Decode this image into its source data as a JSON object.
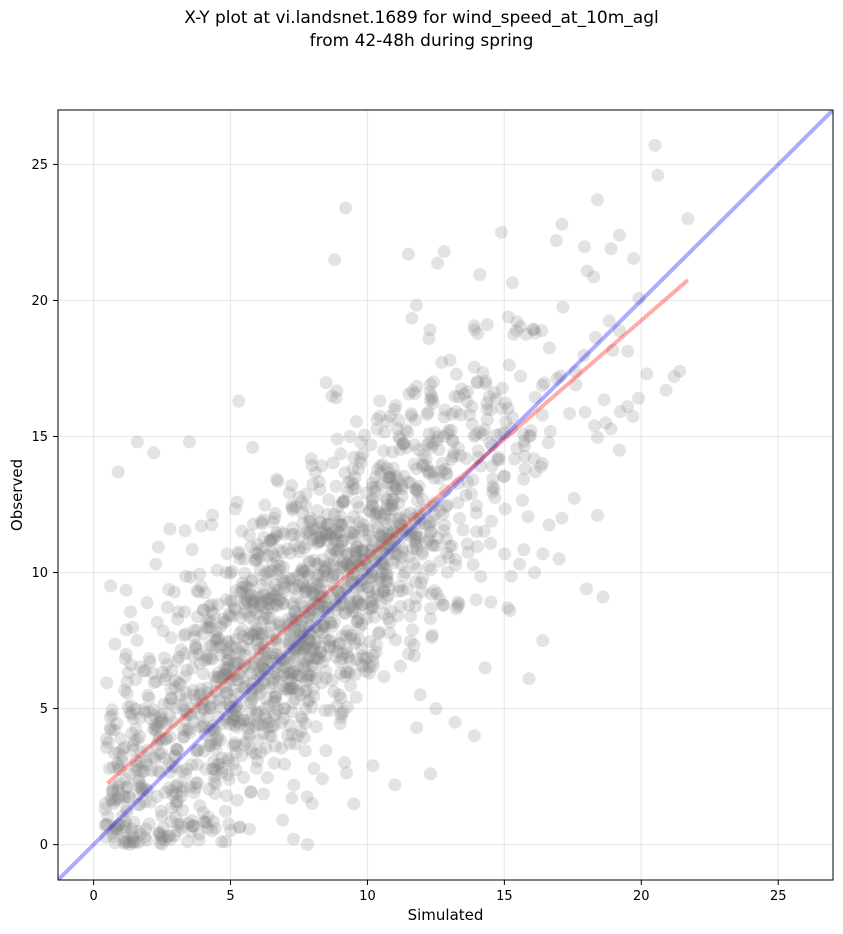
{
  "chart_data": {
    "type": "scatter",
    "title_line1": "X-Y plot at vi.landsnet.1689 for wind_speed_at_10m_agl",
    "title_line2": "from 42-48h during spring",
    "xlabel": "Simulated",
    "ylabel": "Observed",
    "xlim": [
      -1.3,
      27
    ],
    "ylim": [
      -1.3,
      27
    ],
    "xticks": [
      0,
      5,
      10,
      15,
      20,
      25
    ],
    "yticks": [
      0,
      5,
      10,
      15,
      20,
      25
    ],
    "grid": true,
    "n_points": 1800,
    "point_color": "#808080",
    "point_alpha": 0.22,
    "regression_line": {
      "x": [
        0.5,
        21.7
      ],
      "y": [
        2.25,
        20.75
      ],
      "color": "#ff0000"
    },
    "identity_line": {
      "x": [
        -1.3,
        27
      ],
      "y": [
        -1.3,
        27
      ],
      "color": "#0000ff"
    },
    "sample_points": [
      [
        0.9,
        13.7
      ],
      [
        1.6,
        14.8
      ],
      [
        2.2,
        14.4
      ],
      [
        3.5,
        14.8
      ],
      [
        5.3,
        16.3
      ],
      [
        9.2,
        23.4
      ],
      [
        8.8,
        21.5
      ],
      [
        11.5,
        21.7
      ],
      [
        12.8,
        21.8
      ],
      [
        14.9,
        22.5
      ],
      [
        16.9,
        22.2
      ],
      [
        17.1,
        22.8
      ],
      [
        18.4,
        23.7
      ],
      [
        20.5,
        25.7
      ],
      [
        20.6,
        24.6
      ],
      [
        21.7,
        23.0
      ],
      [
        18.9,
        21.9
      ],
      [
        19.2,
        22.4
      ],
      [
        12.3,
        2.6
      ],
      [
        13.9,
        4.0
      ],
      [
        15.9,
        6.1
      ],
      [
        16.4,
        7.5
      ],
      [
        18.0,
        9.4
      ],
      [
        18.6,
        9.1
      ],
      [
        18.4,
        12.1
      ],
      [
        17.1,
        12.0
      ],
      [
        19.2,
        14.5
      ],
      [
        13.2,
        4.5
      ],
      [
        11.0,
        2.2
      ],
      [
        7.3,
        0.2
      ],
      [
        2.7,
        0.3
      ],
      [
        1.3,
        0.1
      ],
      [
        0.8,
        0.6
      ],
      [
        4.1,
        0.8
      ],
      [
        6.9,
        0.9
      ],
      [
        9.5,
        1.5
      ],
      [
        10.2,
        2.9
      ],
      [
        11.8,
        4.3
      ],
      [
        12.5,
        5.0
      ],
      [
        14.3,
        6.5
      ],
      [
        15.2,
        8.6
      ],
      [
        16.1,
        10.0
      ],
      [
        17.0,
        10.5
      ],
      [
        19.5,
        16.1
      ],
      [
        20.2,
        17.3
      ],
      [
        21.2,
        17.2
      ],
      [
        21.4,
        17.4
      ],
      [
        20.9,
        16.7
      ],
      [
        18.7,
        15.5
      ],
      [
        19.9,
        16.4
      ]
    ]
  }
}
